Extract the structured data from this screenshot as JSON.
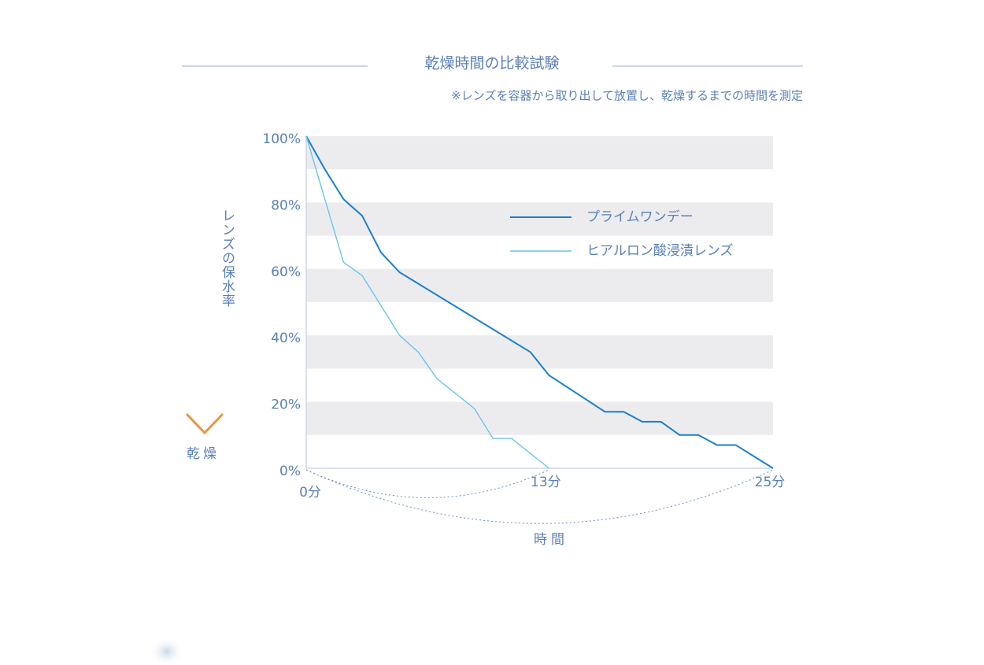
{
  "header": {
    "title": "乾燥時間の比較試験",
    "note": "※レンズを容器から取り出して放置し、乾燥するまでの時間を測定"
  },
  "chart_data": {
    "type": "line",
    "y_axis_label": "レンズの保水率",
    "y_axis_end_label": "乾燥",
    "x_axis_label": "時間",
    "xlim": [
      0,
      25
    ],
    "xticks": [
      {
        "value": 0,
        "label": "0分"
      },
      {
        "value": 13,
        "label": "13分"
      },
      {
        "value": 25,
        "label": "25分"
      }
    ],
    "ylim": [
      0,
      100
    ],
    "yticks": [
      {
        "value": 0,
        "label": "0%"
      },
      {
        "value": 20,
        "label": "20%"
      },
      {
        "value": 40,
        "label": "40%"
      },
      {
        "value": 60,
        "label": "60%"
      },
      {
        "value": 80,
        "label": "80%"
      },
      {
        "value": 100,
        "label": "100%"
      }
    ],
    "grid": true,
    "series": [
      {
        "name": "プライムワンデー",
        "color": "#1a7fd0",
        "x": [
          0,
          1,
          2,
          3,
          4,
          5,
          12,
          13,
          16,
          17,
          18,
          19,
          20,
          21,
          22,
          23,
          25
        ],
        "values": [
          100,
          90,
          81,
          76,
          65,
          59,
          35,
          28,
          17,
          17,
          14,
          14,
          10,
          10,
          7,
          7,
          0
        ]
      },
      {
        "name": "ヒアルロン酸浸漬レンズ",
        "color": "#6cc4ec",
        "x": [
          0,
          2,
          3,
          5,
          6,
          7,
          9,
          10,
          11,
          13
        ],
        "values": [
          100,
          62,
          58,
          40,
          35,
          27,
          18,
          9,
          9,
          0
        ]
      }
    ]
  }
}
